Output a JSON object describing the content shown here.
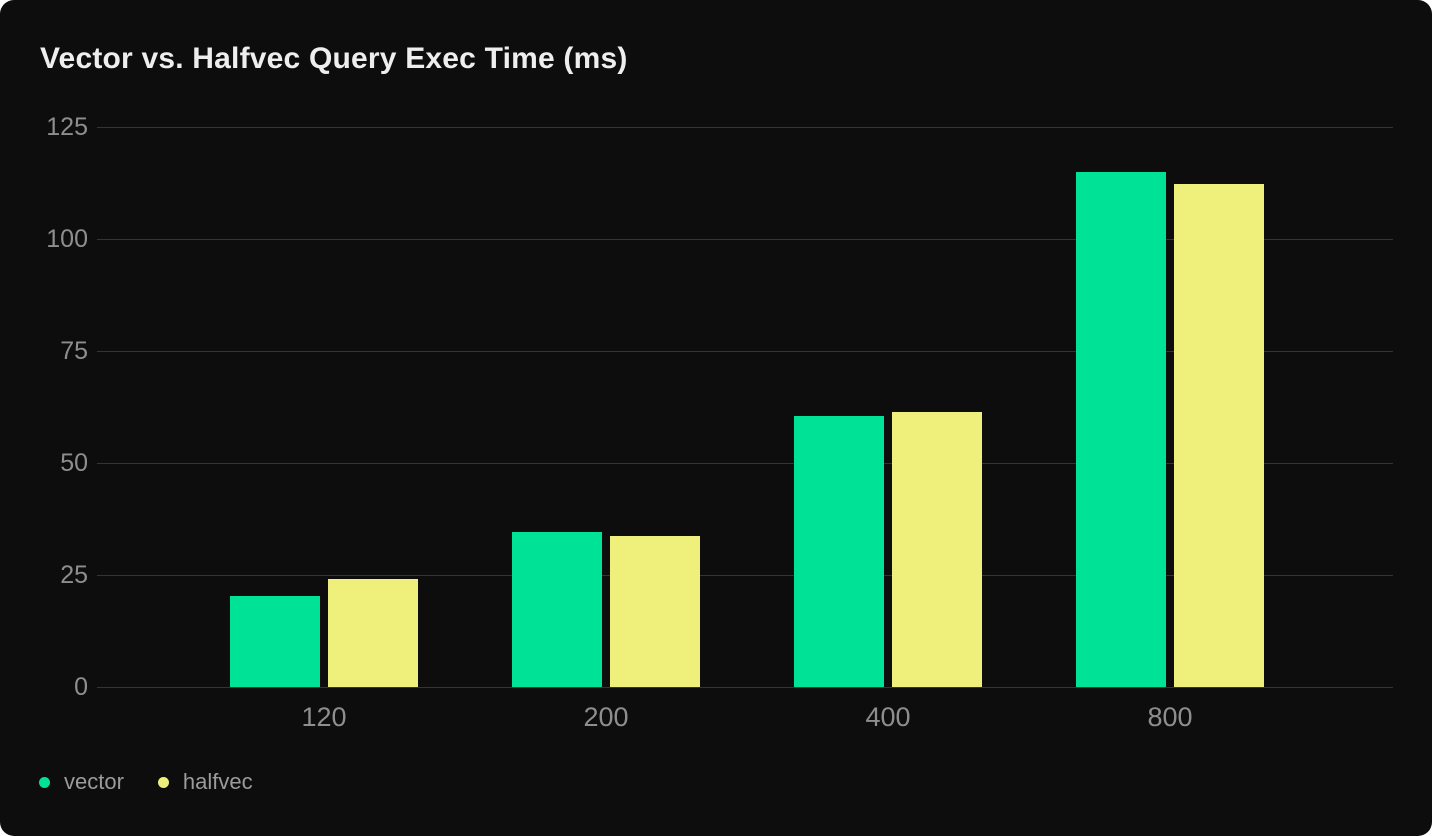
{
  "chart_data": {
    "type": "bar",
    "title": "Vector vs. Halfvec Query Exec Time (ms)",
    "categories": [
      "120",
      "200",
      "400",
      "800"
    ],
    "series": [
      {
        "name": "vector",
        "color": "#00E296",
        "values": [
          20.3,
          34.6,
          60.4,
          115.0
        ]
      },
      {
        "name": "halfvec",
        "color": "#EEF07B",
        "values": [
          24.1,
          33.7,
          61.4,
          112.3
        ]
      }
    ],
    "xlabel": "",
    "ylabel": "",
    "ylim": [
      0,
      125
    ],
    "y_ticks": [
      0,
      25,
      50,
      75,
      100,
      125
    ],
    "grid": true,
    "legend_position": "bottom-left"
  },
  "legend": {
    "items": [
      {
        "label": "vector",
        "color": "#00E296"
      },
      {
        "label": "halfvec",
        "color": "#EEF07B"
      }
    ]
  },
  "theme": {
    "page_bg": "#FFFFFF",
    "card_bg": "#0D0D0D",
    "title_color": "#EEEEEE",
    "tick_color": "#8E8E8E",
    "grid_color": "#343434",
    "legend_text_color": "#9B9B9B"
  }
}
